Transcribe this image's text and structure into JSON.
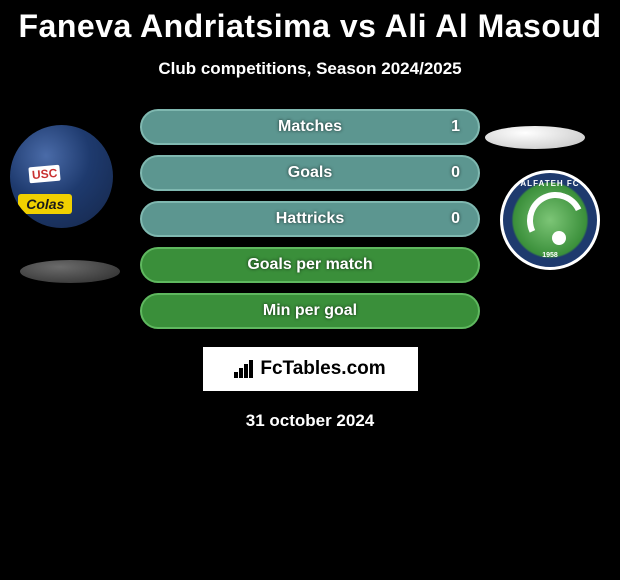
{
  "title": "Faneva Andriatsima vs Ali Al Masoud",
  "subtitle": "Club competitions, Season 2024/2025",
  "stats": [
    {
      "label": "Matches",
      "value": "1",
      "bg": "#5c9690",
      "border": "#7fb8b0"
    },
    {
      "label": "Goals",
      "value": "0",
      "bg": "#5c9690",
      "border": "#7fb8b0"
    },
    {
      "label": "Hattricks",
      "value": "0",
      "bg": "#5c9690",
      "border": "#7fb8b0"
    },
    {
      "label": "Goals per match",
      "value": "",
      "bg": "#3a8f3a",
      "border": "#5fb85f"
    },
    {
      "label": "Min per goal",
      "value": "",
      "bg": "#3a8f3a",
      "border": "#5fb85f"
    }
  ],
  "branding": "FcTables.com",
  "date": "31 october 2024",
  "badge_right": {
    "text": "ALFATEH FC",
    "year": "1958"
  },
  "colors": {
    "background": "#000000",
    "text": "#ffffff"
  }
}
